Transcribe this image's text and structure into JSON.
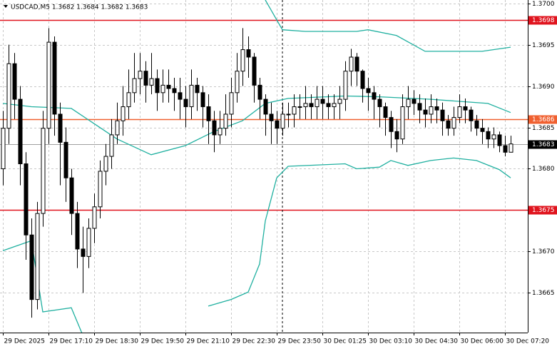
{
  "chart_data": {
    "type": "candlestick",
    "title": "USDCAD,M5  1.3682 1.3684 1.3682 1.3683",
    "ylim": [
      1.36602,
      1.37004
    ],
    "yticks": [
      {
        "value": 1.37,
        "label": "1.3700"
      },
      1.3695,
      {
        "value": 1.369,
        "label": "1.3690"
      },
      1.3685,
      {
        "value": 1.368,
        "label": "1.3680"
      },
      {
        "value": 1.367,
        "label": "1.3670"
      },
      1.3665
    ],
    "xlim": [
      -0.5,
      92
    ],
    "xticks": [
      {
        "value": 0,
        "label": "29 Dec 2025"
      },
      {
        "value": 8,
        "label": "29 Dec 17:10"
      },
      {
        "value": 16,
        "label": "29 Dec 18:30"
      },
      {
        "value": 24,
        "label": "29 Dec 19:50"
      },
      {
        "value": 32,
        "label": "29 Dec 21:10"
      },
      {
        "value": 40,
        "label": "29 Dec 22:30"
      },
      {
        "value": 48,
        "label": "29 Dec 23:50"
      },
      {
        "value": 56,
        "label": "30 Dec 01:25"
      },
      {
        "value": 64,
        "label": "30 Dec 03:10"
      },
      {
        "value": 72,
        "label": "30 Dec 04:30"
      },
      {
        "value": 80,
        "label": "30 Dec 06:00"
      },
      {
        "value": 88,
        "label": "30 Dec 07:20"
      }
    ],
    "grid": true,
    "open": [
      1.368,
      1.36849,
      1.36927,
      1.36884,
      1.36806,
      1.3672,
      1.36642,
      1.36746,
      1.36849,
      1.36953,
      1.36866,
      1.36832,
      1.36789,
      1.36746,
      1.36703,
      1.36694,
      1.36728,
      1.36754,
      1.36797,
      1.36815,
      1.36841,
      1.36858,
      1.36875,
      1.36892,
      1.36909,
      1.36918,
      1.36901,
      1.36909,
      1.36892,
      1.36901,
      1.36897,
      1.36892,
      1.36884,
      1.36875,
      1.36901,
      1.36892,
      1.36875,
      1.36858,
      1.36841,
      1.36849,
      1.36866,
      1.36892,
      1.36918,
      1.36944,
      1.36935,
      1.36901,
      1.36884,
      1.36866,
      1.36858,
      1.36849,
      1.36866,
      1.36866,
      1.36875,
      1.36875,
      1.36879,
      1.36875,
      1.36884,
      1.36879,
      1.36875,
      1.36879,
      1.36884,
      1.36918,
      1.36935,
      1.36918,
      1.36897,
      1.36892,
      1.36884,
      1.36875,
      1.36862,
      1.36845,
      1.36836,
      1.36875,
      1.36884,
      1.36879,
      1.36871,
      1.36866,
      1.36875,
      1.36871,
      1.36858,
      1.36849,
      1.36862,
      1.36875,
      1.36871,
      1.36858,
      1.36849,
      1.36845,
      1.36836,
      1.36841,
      1.36828,
      1.3682
    ],
    "high": [
      1.3687,
      1.3695,
      1.3694,
      1.369,
      1.3682,
      1.3674,
      1.3676,
      1.3687,
      1.3697,
      1.3696,
      1.3688,
      1.3685,
      1.368,
      1.3676,
      1.3673,
      1.3674,
      1.3677,
      1.3681,
      1.3683,
      1.3686,
      1.3688,
      1.369,
      1.3692,
      1.3694,
      1.3694,
      1.3693,
      1.3694,
      1.3692,
      1.3692,
      1.3692,
      1.3691,
      1.3691,
      1.369,
      1.3692,
      1.3691,
      1.369,
      1.3689,
      1.3687,
      1.3687,
      1.3689,
      1.3691,
      1.3694,
      1.3697,
      1.3696,
      1.3694,
      1.3691,
      1.3689,
      1.3688,
      1.3687,
      1.3688,
      1.3688,
      1.3689,
      1.3689,
      1.369,
      1.3689,
      1.369,
      1.369,
      1.3689,
      1.3689,
      1.369,
      1.3693,
      1.36945,
      1.3694,
      1.3692,
      1.3691,
      1.369,
      1.3689,
      1.3688,
      1.3687,
      1.3686,
      1.3689,
      1.369,
      1.36895,
      1.3689,
      1.36885,
      1.3689,
      1.36885,
      1.3688,
      1.36865,
      1.36875,
      1.3689,
      1.36885,
      1.36875,
      1.36865,
      1.3686,
      1.3685,
      1.3685,
      1.36845,
      1.3684,
      1.3684
    ],
    "low": [
      1.3678,
      1.3683,
      1.3686,
      1.3678,
      1.3669,
      1.3662,
      1.3663,
      1.3673,
      1.3683,
      1.3684,
      1.3678,
      1.3676,
      1.3672,
      1.3668,
      1.3665,
      1.3668,
      1.3671,
      1.3674,
      1.3678,
      1.368,
      1.3683,
      1.3684,
      1.3686,
      1.3688,
      1.3689,
      1.3688,
      1.3689,
      1.3687,
      1.3688,
      1.3688,
      1.3687,
      1.3686,
      1.3685,
      1.3686,
      1.3687,
      1.3685,
      1.3683,
      1.3682,
      1.3683,
      1.3684,
      1.3685,
      1.3688,
      1.369,
      1.3691,
      1.3688,
      1.3686,
      1.3684,
      1.3683,
      1.3683,
      1.3684,
      1.3685,
      1.3685,
      1.3686,
      1.3686,
      1.3686,
      1.3686,
      1.3686,
      1.3686,
      1.3686,
      1.3686,
      1.3687,
      1.369,
      1.369,
      1.3688,
      1.3687,
      1.3686,
      1.3685,
      1.3684,
      1.36825,
      1.3682,
      1.3683,
      1.3686,
      1.36865,
      1.36855,
      1.3685,
      1.36855,
      1.36855,
      1.3684,
      1.3684,
      1.3684,
      1.36855,
      1.36855,
      1.36845,
      1.3684,
      1.3683,
      1.36825,
      1.36825,
      1.3682,
      1.36815,
      1.3682
    ],
    "close": [
      1.36849,
      1.36927,
      1.36884,
      1.36806,
      1.3672,
      1.36642,
      1.36746,
      1.36849,
      1.36953,
      1.36866,
      1.36832,
      1.36789,
      1.36746,
      1.36703,
      1.36694,
      1.36728,
      1.36754,
      1.36797,
      1.36815,
      1.36841,
      1.36858,
      1.36875,
      1.36892,
      1.36909,
      1.36918,
      1.36901,
      1.36909,
      1.36892,
      1.36901,
      1.36897,
      1.36892,
      1.36884,
      1.36875,
      1.36901,
      1.36892,
      1.36875,
      1.36858,
      1.36841,
      1.36849,
      1.36866,
      1.36892,
      1.36918,
      1.36944,
      1.36935,
      1.36901,
      1.36884,
      1.36866,
      1.36858,
      1.36849,
      1.36866,
      1.36866,
      1.36875,
      1.36875,
      1.36879,
      1.36875,
      1.36884,
      1.36879,
      1.36875,
      1.36879,
      1.36884,
      1.36918,
      1.36935,
      1.36918,
      1.36897,
      1.36892,
      1.36884,
      1.36875,
      1.36862,
      1.36845,
      1.36836,
      1.36875,
      1.36884,
      1.36879,
      1.36871,
      1.36866,
      1.36875,
      1.36871,
      1.36858,
      1.36849,
      1.36862,
      1.36875,
      1.36871,
      1.36858,
      1.36849,
      1.36845,
      1.36836,
      1.36841,
      1.36828,
      1.3682,
      1.3683
    ],
    "bands": [
      {
        "color": "#20b0a0",
        "x": [
          46,
          49,
          53,
          62,
          64,
          69,
          74,
          84,
          89
        ],
        "values": [
          1.37004,
          1.36968,
          1.36966,
          1.36966,
          1.36968,
          1.36961,
          1.36942,
          1.36942,
          1.36947
        ]
      },
      {
        "color": "#20b0a0",
        "x": [
          0,
          5,
          12,
          20,
          26,
          32,
          37,
          42,
          46,
          50,
          60,
          66,
          75,
          85,
          89
        ],
        "values": [
          1.36879,
          1.36875,
          1.36873,
          1.36836,
          1.36817,
          1.36828,
          1.36845,
          1.36858,
          1.36879,
          1.36885,
          1.36888,
          1.36887,
          1.36884,
          1.36879,
          1.36868
        ]
      },
      {
        "color": "#20b0a0",
        "x": [
          0,
          5,
          7,
          12,
          14,
          null,
          36,
          40,
          43,
          45,
          46,
          48,
          50,
          60,
          62,
          66,
          68,
          71,
          75,
          79,
          83,
          87,
          89
        ],
        "values": [
          1.36701,
          1.36713,
          1.36627,
          1.36632,
          1.36599,
          null,
          1.36634,
          1.36642,
          1.36651,
          1.36685,
          1.36737,
          1.36789,
          1.36803,
          1.36806,
          1.368,
          1.36802,
          1.3681,
          1.36804,
          1.3681,
          1.36813,
          1.3681,
          1.36799,
          1.36789
        ]
      }
    ],
    "levels": [
      {
        "value": 1.3698,
        "color": "#e0141e"
      },
      {
        "value": 1.3686,
        "color": "#f06030"
      },
      {
        "value": 1.3675,
        "color": "#e0141e"
      }
    ],
    "current_price": 1.3683
  }
}
